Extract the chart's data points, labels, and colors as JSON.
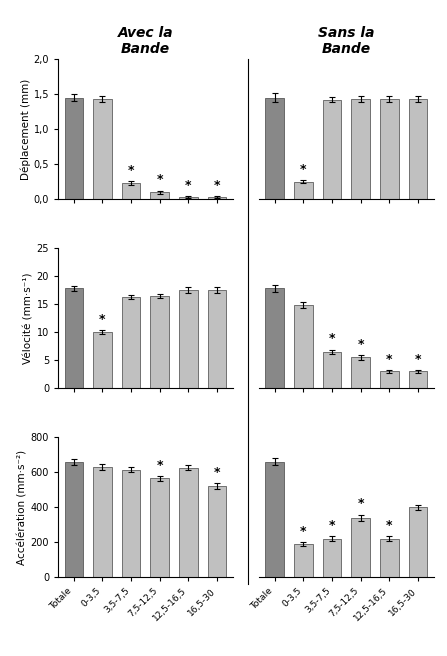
{
  "title_left": "Avec la\nBande",
  "title_right": "Sans la\nBande",
  "categories": [
    "Totale",
    "0-3,5",
    "3,5-7,5",
    "7,5-12,5",
    "12,5-16,5",
    "16,5-30"
  ],
  "col_titles_fontsize": 10,
  "deplacement": {
    "ylabel": "Déplacement (mm)",
    "ylim": [
      0,
      2.0
    ],
    "yticks": [
      0.0,
      0.5,
      1.0,
      1.5,
      2.0
    ],
    "yticklabels": [
      "0,0",
      "0,5",
      "1,0",
      "1,5",
      "2,0"
    ],
    "avec": {
      "values": [
        1.45,
        1.43,
        0.23,
        0.1,
        0.03,
        0.03
      ],
      "errors": [
        0.05,
        0.04,
        0.03,
        0.02,
        0.01,
        0.01
      ],
      "stars": [
        false,
        false,
        true,
        true,
        true,
        true
      ]
    },
    "sans": {
      "values": [
        1.45,
        0.25,
        1.42,
        1.43,
        1.43,
        1.43
      ],
      "errors": [
        0.06,
        0.02,
        0.04,
        0.04,
        0.04,
        0.04
      ],
      "stars": [
        false,
        true,
        false,
        false,
        false,
        false
      ]
    }
  },
  "velocite": {
    "ylabel": "Vélocité (mm·s⁻¹)",
    "ylim": [
      0,
      25
    ],
    "yticks": [
      0,
      5,
      10,
      15,
      20,
      25
    ],
    "yticklabels": [
      "0",
      "5",
      "10",
      "15",
      "20",
      "25"
    ],
    "avec": {
      "values": [
        17.8,
        10.0,
        16.3,
        16.5,
        17.5,
        17.5
      ],
      "errors": [
        0.5,
        0.4,
        0.4,
        0.4,
        0.5,
        0.5
      ],
      "stars": [
        false,
        true,
        false,
        false,
        false,
        false
      ]
    },
    "sans": {
      "values": [
        17.8,
        14.8,
        6.5,
        5.5,
        3.0,
        3.0
      ],
      "errors": [
        0.6,
        0.5,
        0.4,
        0.4,
        0.3,
        0.3
      ],
      "stars": [
        false,
        false,
        true,
        true,
        true,
        true
      ]
    }
  },
  "acceleration": {
    "ylabel": "Accélération (mm·s⁻²)",
    "ylim": [
      0,
      800
    ],
    "yticks": [
      0,
      200,
      400,
      600,
      800
    ],
    "yticklabels": [
      "0",
      "200",
      "400",
      "600",
      "800"
    ],
    "avec": {
      "values": [
        660,
        630,
        615,
        565,
        625,
        520
      ],
      "errors": [
        18,
        15,
        15,
        15,
        15,
        18
      ],
      "stars": [
        false,
        false,
        false,
        true,
        false,
        true
      ]
    },
    "sans": {
      "values": [
        660,
        190,
        220,
        340,
        220,
        400
      ],
      "errors": [
        20,
        12,
        15,
        18,
        15,
        15
      ],
      "stars": [
        false,
        true,
        true,
        true,
        true,
        false
      ]
    }
  },
  "bar_color_dark": "#888888",
  "bar_color_light": "#c0c0c0",
  "bar_edge_color": "#444444",
  "bar_width": 0.65,
  "star_fontsize": 9,
  "label_fontsize": 6.5,
  "tick_fontsize": 7,
  "ylabel_fontsize": 7.5,
  "figsize": [
    4.47,
    6.56
  ],
  "dpi": 100
}
